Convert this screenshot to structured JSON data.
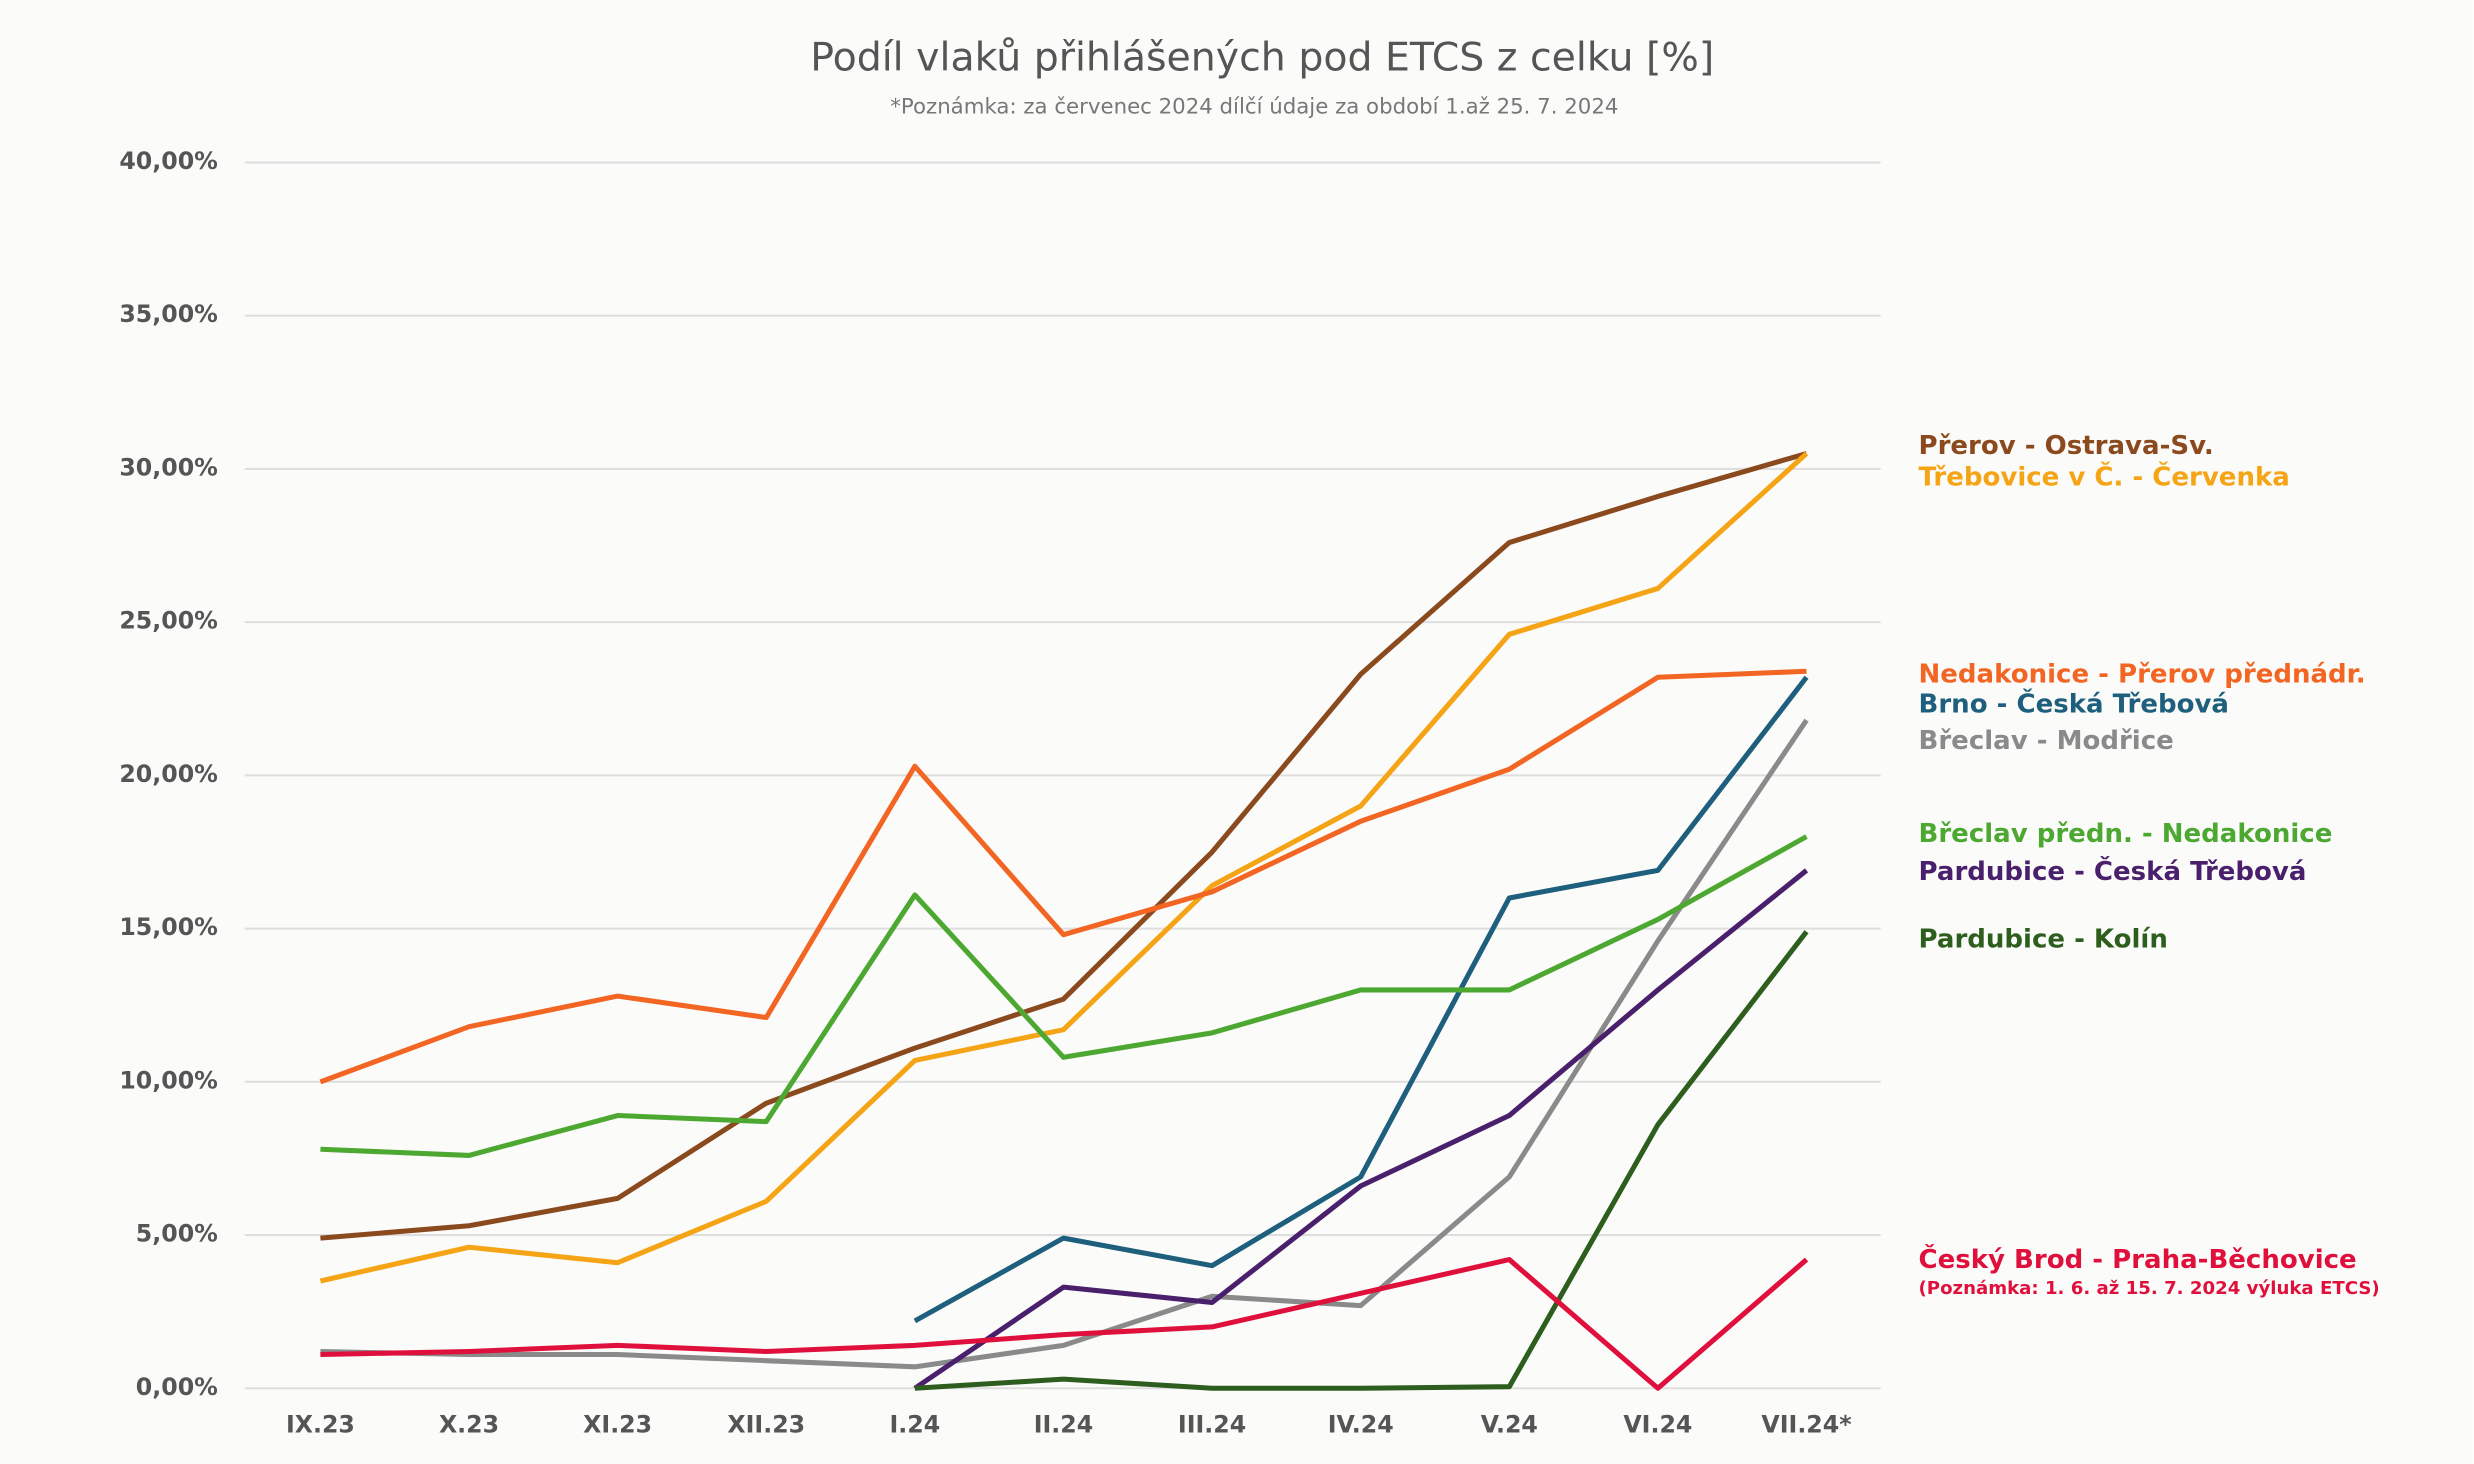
{
  "chart_data": {
    "type": "line",
    "title": "Podíl vlaků přihlášených pod ETCS z celku [%]",
    "subtitle": "*Poznámka: za červenec 2024 dílčí údaje za období 1.až 25. 7. 2024",
    "categories": [
      "IX.23",
      "X.23",
      "XI.23",
      "XII.23",
      "I.24",
      "II.24",
      "III.24",
      "IV.24",
      "V.24",
      "VI.24",
      "VII.24*"
    ],
    "ylim": [
      0,
      40
    ],
    "yticks": [
      {
        "value": 0,
        "label": "0,00%"
      },
      {
        "value": 5,
        "label": "5,00%"
      },
      {
        "value": 10,
        "label": "10,00%"
      },
      {
        "value": 15,
        "label": "15,00%"
      },
      {
        "value": 20,
        "label": "20,00%"
      },
      {
        "value": 25,
        "label": "25,00%"
      },
      {
        "value": 30,
        "label": "30,00%"
      },
      {
        "value": 35,
        "label": "35,00%"
      },
      {
        "value": 40,
        "label": "40,00%"
      }
    ],
    "grid": true,
    "legend": "right",
    "legend_note": "(Poznámka: 1. 6. až 15. 7. 2024 výluka ETCS)",
    "series": [
      {
        "name": "Přerov - Ostrava-Sv.",
        "color": "#8b4a1e",
        "values": [
          4.9,
          5.3,
          6.2,
          9.3,
          11.1,
          12.7,
          17.5,
          23.3,
          27.6,
          29.1,
          30.5
        ]
      },
      {
        "name": "Třebovice v Č. - Červenka",
        "color": "#f5a416",
        "values": [
          3.5,
          4.6,
          4.1,
          6.1,
          10.7,
          11.7,
          16.4,
          19.0,
          24.6,
          26.1,
          30.5
        ]
      },
      {
        "name": "Nedakonice - Přerov přednádr.",
        "color": "#f26522",
        "values": [
          10.0,
          11.8,
          12.8,
          12.1,
          20.3,
          14.8,
          16.2,
          18.5,
          20.2,
          23.2,
          23.4
        ]
      },
      {
        "name": "Brno - Česká Třebová",
        "color": "#1d5f7c",
        "values": [
          null,
          null,
          null,
          null,
          2.2,
          4.9,
          4.0,
          6.9,
          16.0,
          16.9,
          23.2
        ]
      },
      {
        "name": "Břeclav - Modřice",
        "color": "#8a8a8a",
        "values": [
          1.2,
          1.1,
          1.1,
          0.9,
          0.7,
          1.4,
          3.0,
          2.7,
          6.9,
          14.6,
          21.8
        ]
      },
      {
        "name": "Břeclav předn. - Nedakonice",
        "color": "#4da832",
        "values": [
          7.8,
          7.6,
          8.9,
          8.7,
          16.1,
          10.8,
          11.6,
          13.0,
          13.0,
          15.3,
          18.0
        ]
      },
      {
        "name": "Pardubice - Česká Třebová",
        "color": "#4a1f6c",
        "values": [
          null,
          null,
          null,
          null,
          0,
          3.3,
          2.8,
          6.6,
          8.9,
          13.0,
          16.9
        ]
      },
      {
        "name": "Pardubice - Kolín",
        "color": "#2e5e1e",
        "values": [
          null,
          null,
          null,
          null,
          0,
          0.3,
          0,
          0,
          0.05,
          8.6,
          14.9
        ]
      },
      {
        "name": "Český Brod - Praha-Běchovice",
        "color": "#e0103c",
        "values": [
          1.1,
          1.2,
          1.4,
          1.2,
          1.4,
          1.75,
          2.0,
          3.1,
          4.2,
          0.0,
          4.2
        ]
      }
    ]
  }
}
